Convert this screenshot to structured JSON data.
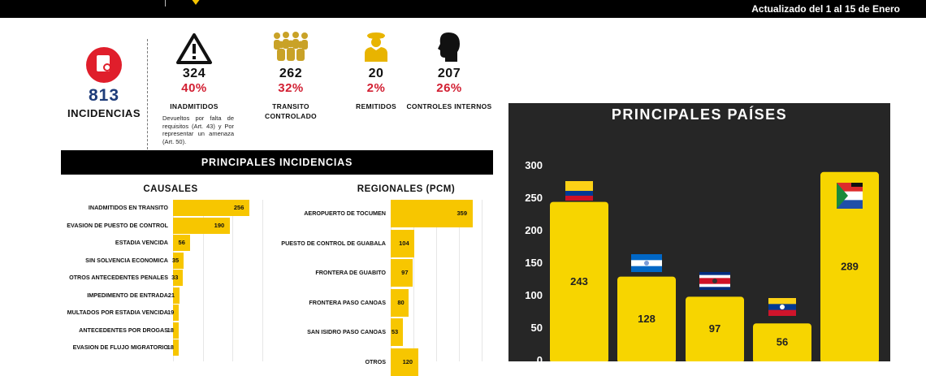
{
  "header": {
    "updated_text": "Actualizado del 1 al 15 de Enero"
  },
  "total": {
    "value": "813",
    "label": "INCIDENCIAS",
    "icon": "document-search-icon",
    "color": "#e01e2b"
  },
  "stats": [
    {
      "count": "324",
      "pct": "40%",
      "label": "INADMITIDOS",
      "sub": "Devueltos por falta de requisitos (Art. 43) y Por representar un amenaza (Art. 50).",
      "icon": "warning-icon"
    },
    {
      "count": "262",
      "pct": "32%",
      "label": "TRANSITO CONTROLADO",
      "sub": "",
      "icon": "group-people-icon"
    },
    {
      "count": "20",
      "pct": "2%",
      "label": "REMITIDOS",
      "sub": "",
      "icon": "officer-icon"
    },
    {
      "count": "207",
      "pct": "26%",
      "label": "CONTROLES INTERNOS",
      "sub": "",
      "icon": "head-profile-icon"
    }
  ],
  "incidencias": {
    "title": "PRINCIPALES INCIDENCIAS"
  },
  "causales": {
    "title": "CAUSALES",
    "chart_data": {
      "type": "bar",
      "orientation": "horizontal",
      "categories": [
        "INADMITIDOS EN TRANSITO",
        "EVASION DE PUESTO DE CONTROL",
        "ESTADIA VENCIDA",
        "SIN SOLVENCIA ECONOMICA",
        "OTROS ANTECEDENTES PENALES",
        "IMPEDIMENTO DE ENTRADA",
        "MULTADOS POR ESTADIA VENCIDA",
        "ANTECEDENTES POR DROGAS",
        "EVASION DE FLUJO MIGRATORIO"
      ],
      "values": [
        256,
        190,
        56,
        35,
        33,
        21,
        19,
        18,
        18
      ],
      "xlim": [
        0,
        300
      ]
    }
  },
  "regionales": {
    "title": "REGIONALES (PCM)",
    "chart_data": {
      "type": "bar",
      "orientation": "horizontal",
      "categories": [
        "AEROPUERTO DE TOCUMEN",
        "PUESTO DE CONTROL DE GUABALA",
        "FRONTERA DE GUABITO",
        "FRONTERA PASO CANOAS",
        "SAN ISIDRO PASO CANOAS",
        "OTROS"
      ],
      "values": [
        359,
        104,
        97,
        80,
        53,
        120
      ],
      "xlim": [
        0,
        400
      ]
    }
  },
  "paises": {
    "title": "PRINCIPALES PAÍSES",
    "chart_data": {
      "type": "bar",
      "categories": [
        "Colombia",
        "Nicaragua",
        "Costa Rica",
        "Venezuela",
        "Otros"
      ],
      "values": [
        243,
        128,
        97,
        56,
        289
      ],
      "ylim": [
        0,
        300
      ],
      "yticks": [
        0,
        50,
        100,
        150,
        200,
        250,
        300
      ],
      "bar_color": "#f7d500",
      "background": "#262626",
      "flags": [
        "colombia-flag-icon",
        "nicaragua-flag-icon",
        "costa-rica-flag-icon",
        "venezuela-flag-icon",
        "multi-flag-icon"
      ]
    }
  },
  "colors": {
    "accent": "#f7c600",
    "pct": "#d21f32",
    "navy": "#1f3d7a"
  }
}
